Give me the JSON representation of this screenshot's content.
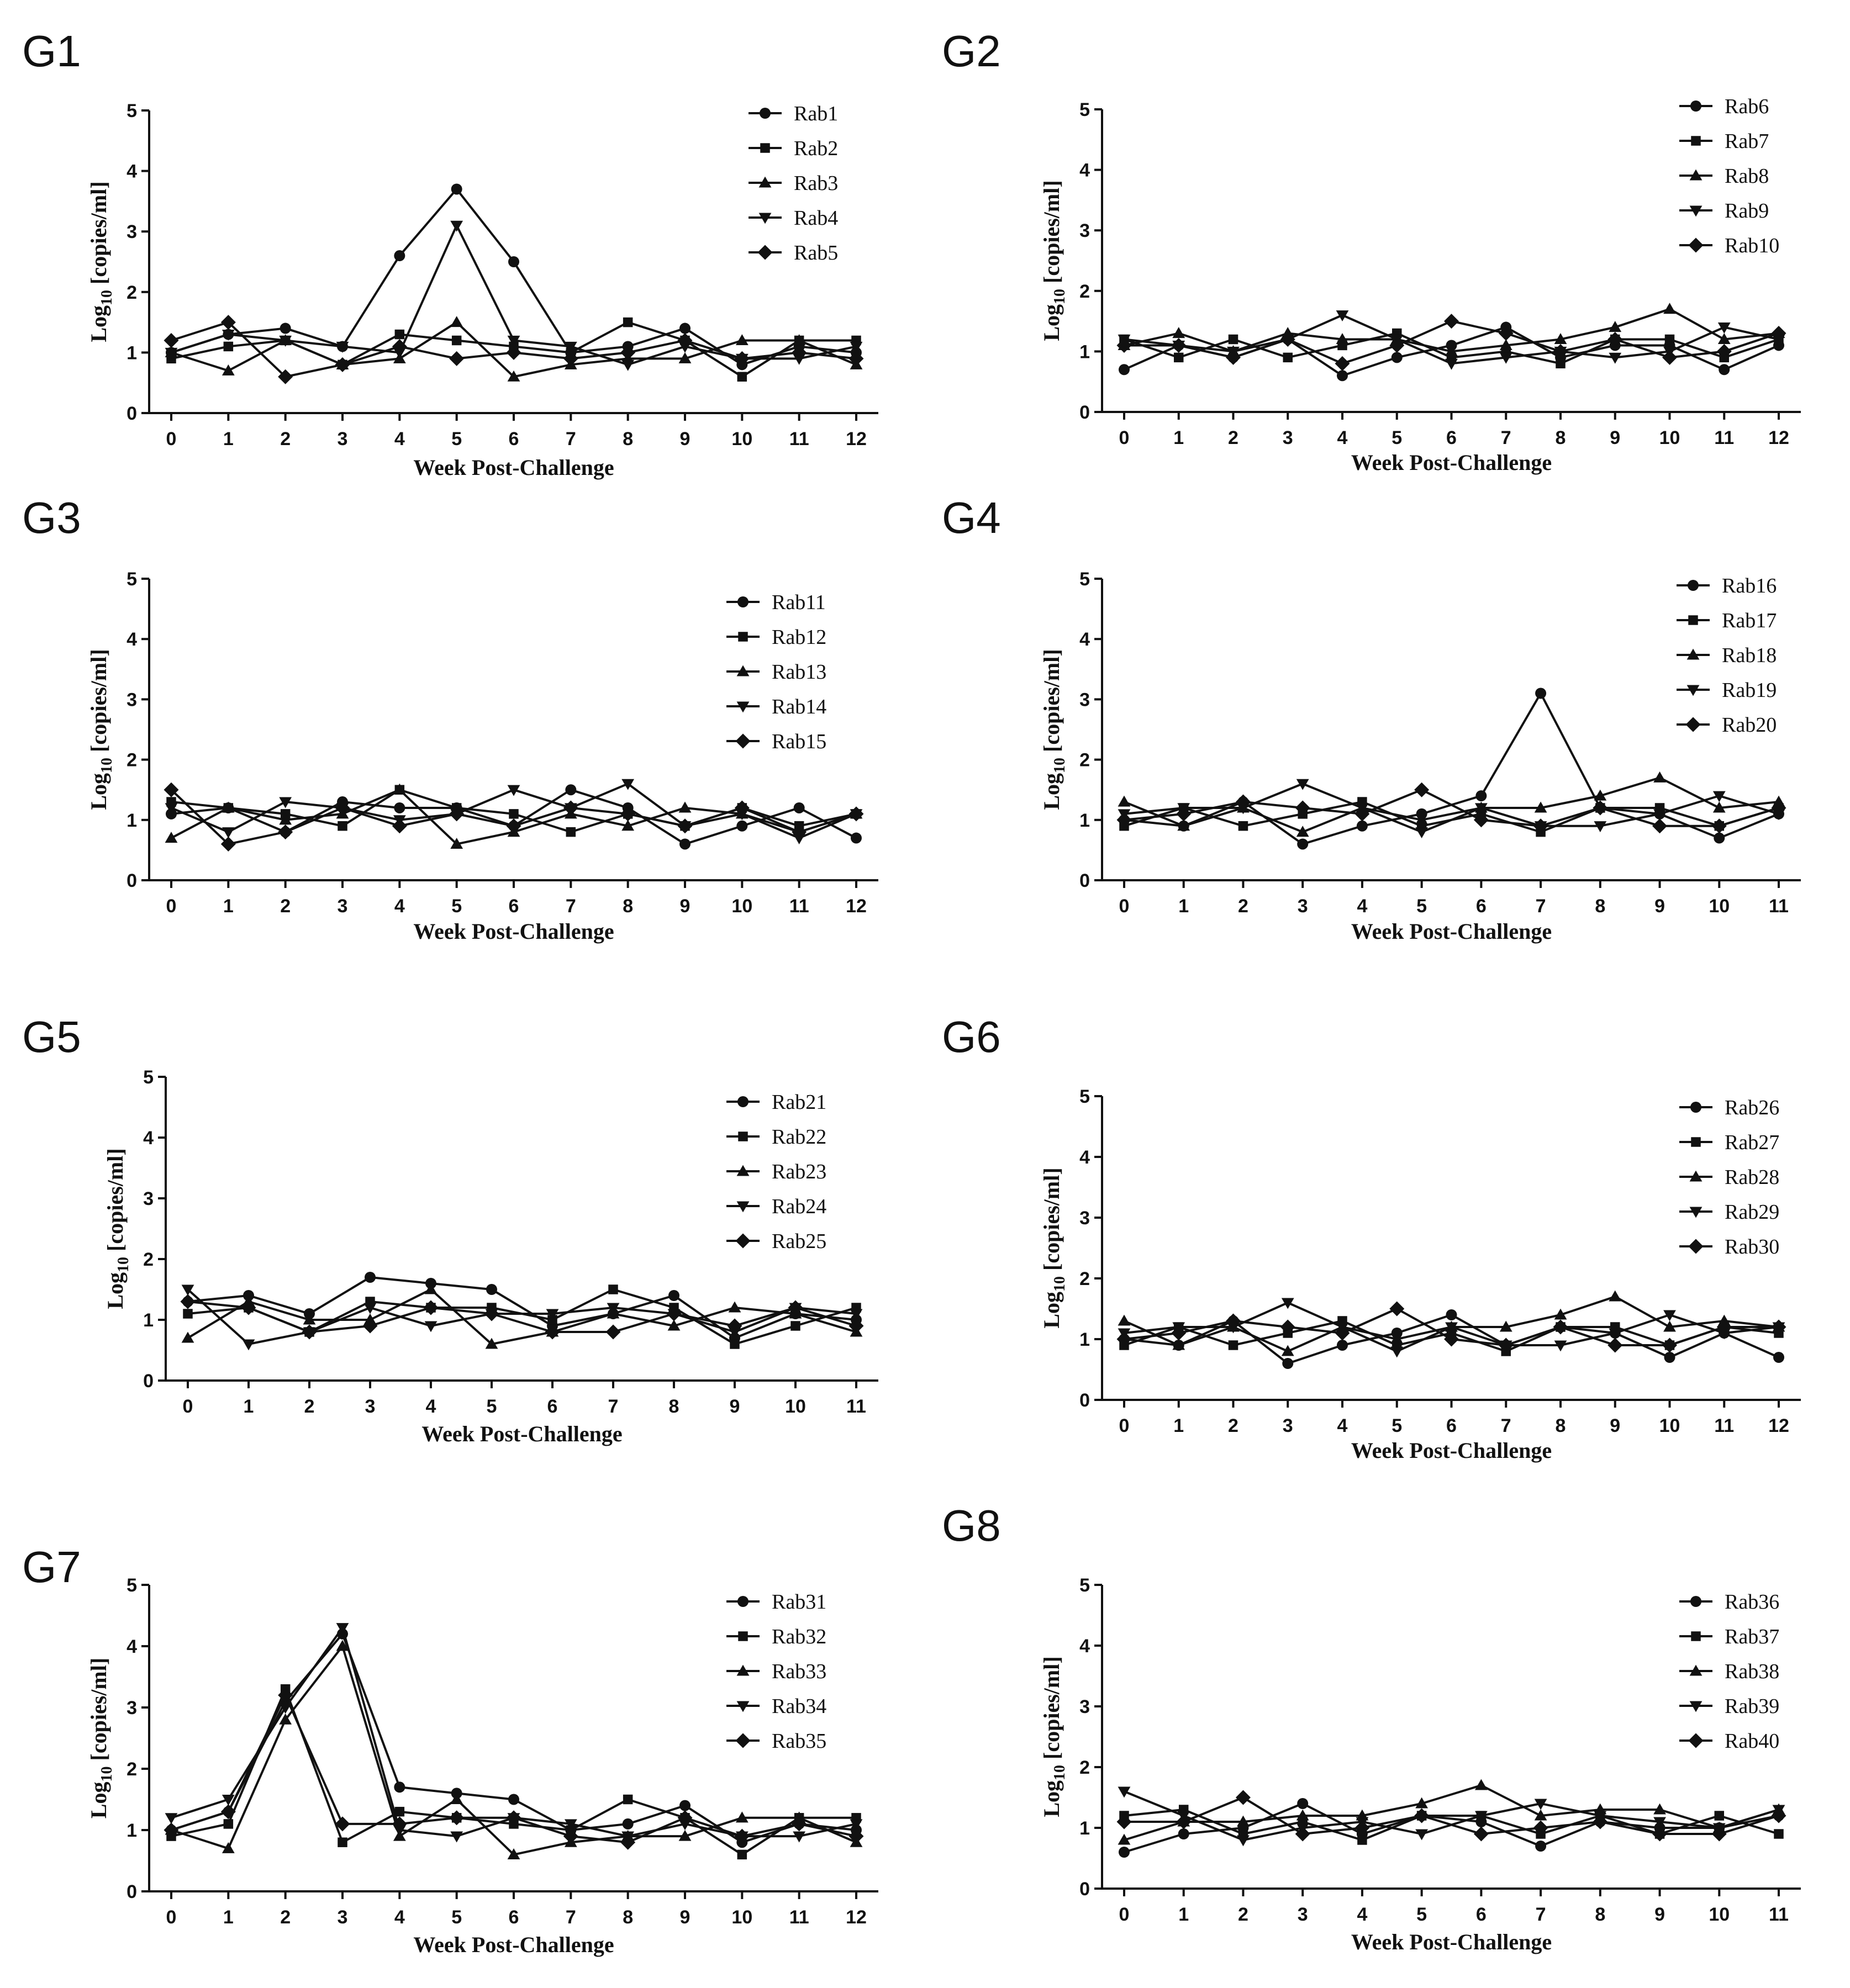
{
  "figure": {
    "xlabel": "Week Post-Challenge",
    "ylabel": "Log10 [copies/ml]",
    "ylabel_main": "Log",
    "ylabel_sub": "10",
    "ylabel_rest": " [copies/ml]",
    "marker_order": [
      "circle",
      "square",
      "triangle-up",
      "triangle-down",
      "diamond"
    ]
  },
  "chart_data": [
    {
      "panel": "G1",
      "type": "line",
      "ylim": [
        0,
        5
      ],
      "x": [
        0,
        1,
        2,
        3,
        4,
        5,
        6,
        7,
        8,
        9,
        10,
        11,
        12
      ],
      "series": [
        {
          "name": "Rab1",
          "values": [
            1.0,
            1.3,
            1.4,
            1.1,
            2.6,
            3.7,
            2.5,
            1.0,
            1.1,
            1.4,
            0.8,
            1.1,
            1.0
          ]
        },
        {
          "name": "Rab2",
          "values": [
            0.9,
            1.1,
            1.2,
            0.8,
            1.3,
            1.2,
            1.1,
            1.0,
            1.5,
            1.2,
            0.6,
            1.2,
            1.2
          ]
        },
        {
          "name": "Rab3",
          "values": [
            1.0,
            0.7,
            1.2,
            0.8,
            0.9,
            1.5,
            0.6,
            0.8,
            0.9,
            0.9,
            1.2,
            1.2,
            0.8
          ]
        },
        {
          "name": "Rab4",
          "values": [
            1.0,
            1.3,
            1.2,
            1.1,
            1.0,
            3.1,
            1.2,
            1.1,
            0.8,
            1.1,
            0.9,
            0.9,
            1.1
          ]
        },
        {
          "name": "Rab5",
          "values": [
            1.2,
            1.5,
            0.6,
            0.8,
            1.1,
            0.9,
            1.0,
            0.9,
            1.0,
            1.2,
            0.9,
            1.0,
            0.9
          ]
        }
      ]
    },
    {
      "panel": "G2",
      "type": "line",
      "ylim": [
        0,
        5
      ],
      "x": [
        0,
        1,
        2,
        3,
        4,
        5,
        6,
        7,
        8,
        9,
        10,
        11,
        12
      ],
      "series": [
        {
          "name": "Rab6",
          "values": [
            0.7,
            1.1,
            0.9,
            1.2,
            0.6,
            0.9,
            1.1,
            1.4,
            0.9,
            1.1,
            1.1,
            0.7,
            1.1
          ]
        },
        {
          "name": "Rab7",
          "values": [
            1.2,
            0.9,
            1.2,
            0.9,
            1.1,
            1.3,
            0.9,
            1.0,
            0.8,
            1.2,
            1.2,
            0.9,
            1.2
          ]
        },
        {
          "name": "Rab8",
          "values": [
            1.1,
            1.3,
            1.0,
            1.3,
            1.2,
            1.2,
            1.0,
            1.1,
            1.2,
            1.4,
            1.7,
            1.2,
            1.3
          ]
        },
        {
          "name": "Rab9",
          "values": [
            1.2,
            1.1,
            1.0,
            1.2,
            1.6,
            1.2,
            0.8,
            0.9,
            1.0,
            0.9,
            1.0,
            1.4,
            1.2
          ]
        },
        {
          "name": "Rab10",
          "values": [
            1.1,
            1.1,
            0.9,
            1.2,
            0.8,
            1.1,
            1.5,
            1.3,
            1.0,
            1.2,
            0.9,
            1.0,
            1.3
          ]
        }
      ]
    },
    {
      "panel": "G3",
      "type": "line",
      "ylim": [
        0,
        5
      ],
      "x": [
        0,
        1,
        2,
        3,
        4,
        5,
        6,
        7,
        8,
        9,
        10,
        11,
        12
      ],
      "series": [
        {
          "name": "Rab11",
          "values": [
            1.1,
            1.2,
            0.8,
            1.3,
            1.2,
            1.2,
            0.9,
            1.5,
            1.2,
            0.6,
            0.9,
            1.2,
            0.7
          ]
        },
        {
          "name": "Rab12",
          "values": [
            1.3,
            1.2,
            1.1,
            0.9,
            1.5,
            1.2,
            1.1,
            0.8,
            1.1,
            0.9,
            1.2,
            0.9,
            1.1
          ]
        },
        {
          "name": "Rab13",
          "values": [
            0.7,
            1.2,
            1.0,
            1.1,
            1.5,
            0.6,
            0.8,
            1.1,
            0.9,
            1.2,
            1.1,
            0.8,
            1.1
          ]
        },
        {
          "name": "Rab14",
          "values": [
            1.2,
            0.8,
            1.3,
            1.2,
            1.0,
            1.1,
            1.5,
            1.2,
            1.6,
            0.9,
            1.1,
            0.7,
            1.1
          ]
        },
        {
          "name": "Rab15",
          "values": [
            1.5,
            0.6,
            0.8,
            1.2,
            0.9,
            1.1,
            0.9,
            1.2,
            1.1,
            0.9,
            1.2,
            0.8,
            1.1
          ]
        }
      ]
    },
    {
      "panel": "G4",
      "type": "line",
      "ylim": [
        0,
        5
      ],
      "x": [
        0,
        1,
        2,
        3,
        4,
        5,
        6,
        7,
        8,
        9,
        10,
        11
      ],
      "series": [
        {
          "name": "Rab16",
          "values": [
            1.0,
            0.9,
            1.3,
            0.6,
            0.9,
            1.1,
            1.4,
            3.1,
            1.2,
            1.1,
            0.7,
            1.1
          ]
        },
        {
          "name": "Rab17",
          "values": [
            0.9,
            1.2,
            0.9,
            1.1,
            1.3,
            0.9,
            1.1,
            0.8,
            1.2,
            1.2,
            0.9,
            1.2
          ]
        },
        {
          "name": "Rab18",
          "values": [
            1.3,
            0.9,
            1.2,
            0.8,
            1.2,
            1.0,
            1.2,
            1.2,
            1.4,
            1.7,
            1.2,
            1.3
          ]
        },
        {
          "name": "Rab19",
          "values": [
            1.1,
            1.2,
            1.2,
            1.6,
            1.2,
            0.8,
            1.2,
            0.9,
            0.9,
            1.1,
            1.4,
            1.1
          ]
        },
        {
          "name": "Rab20",
          "values": [
            1.0,
            1.1,
            1.3,
            1.2,
            1.1,
            1.5,
            1.0,
            0.9,
            1.2,
            0.9,
            0.9,
            1.2
          ]
        }
      ]
    },
    {
      "panel": "G5",
      "type": "line",
      "ylim": [
        0,
        5
      ],
      "x": [
        0,
        1,
        2,
        3,
        4,
        5,
        6,
        7,
        8,
        9,
        10,
        11
      ],
      "series": [
        {
          "name": "Rab21",
          "values": [
            1.3,
            1.4,
            1.1,
            1.7,
            1.6,
            1.5,
            0.9,
            1.1,
            1.4,
            0.7,
            1.1,
            1.0
          ]
        },
        {
          "name": "Rab22",
          "values": [
            1.1,
            1.2,
            0.8,
            1.3,
            1.2,
            1.2,
            1.0,
            1.5,
            1.2,
            0.6,
            0.9,
            1.2
          ]
        },
        {
          "name": "Rab23",
          "values": [
            0.7,
            1.3,
            1.0,
            1.0,
            1.5,
            0.6,
            0.8,
            1.1,
            0.9,
            1.2,
            1.1,
            0.8
          ]
        },
        {
          "name": "Rab24",
          "values": [
            1.5,
            0.6,
            0.8,
            1.2,
            0.9,
            1.1,
            1.1,
            1.2,
            1.1,
            0.8,
            1.2,
            1.1
          ]
        },
        {
          "name": "Rab25",
          "values": [
            1.3,
            1.2,
            0.8,
            0.9,
            1.2,
            1.1,
            0.8,
            0.8,
            1.1,
            0.9,
            1.2,
            0.9
          ]
        }
      ]
    },
    {
      "panel": "G6",
      "type": "line",
      "ylim": [
        0,
        5
      ],
      "x": [
        0,
        1,
        2,
        3,
        4,
        5,
        6,
        7,
        8,
        9,
        10,
        11,
        12
      ],
      "series": [
        {
          "name": "Rab26",
          "values": [
            1.0,
            0.9,
            1.3,
            0.6,
            0.9,
            1.1,
            1.4,
            0.9,
            1.2,
            1.1,
            0.7,
            1.1,
            0.7
          ]
        },
        {
          "name": "Rab27",
          "values": [
            0.9,
            1.2,
            0.9,
            1.1,
            1.3,
            0.9,
            1.1,
            0.8,
            1.2,
            1.2,
            0.9,
            1.2,
            1.1
          ]
        },
        {
          "name": "Rab28",
          "values": [
            1.3,
            0.9,
            1.2,
            0.8,
            1.2,
            1.0,
            1.2,
            1.2,
            1.4,
            1.7,
            1.2,
            1.3,
            1.2
          ]
        },
        {
          "name": "Rab29",
          "values": [
            1.1,
            1.2,
            1.2,
            1.6,
            1.2,
            0.8,
            1.2,
            0.9,
            0.9,
            1.1,
            1.4,
            1.1,
            1.2
          ]
        },
        {
          "name": "Rab30",
          "values": [
            1.0,
            1.1,
            1.3,
            1.2,
            1.1,
            1.5,
            1.0,
            0.9,
            1.2,
            0.9,
            0.9,
            1.2,
            1.2
          ]
        }
      ]
    },
    {
      "panel": "G7",
      "type": "line",
      "ylim": [
        0,
        5
      ],
      "x": [
        0,
        1,
        2,
        3,
        4,
        5,
        6,
        7,
        8,
        9,
        10,
        11,
        12
      ],
      "series": [
        {
          "name": "Rab31",
          "values": [
            1.0,
            1.3,
            3.1,
            4.2,
            1.7,
            1.6,
            1.5,
            1.0,
            1.1,
            1.4,
            0.8,
            1.1,
            1.0
          ]
        },
        {
          "name": "Rab32",
          "values": [
            0.9,
            1.1,
            3.3,
            0.8,
            1.3,
            1.2,
            1.1,
            1.0,
            1.5,
            1.2,
            0.6,
            1.2,
            1.2
          ]
        },
        {
          "name": "Rab33",
          "values": [
            1.0,
            0.7,
            2.8,
            4.0,
            0.9,
            1.5,
            0.6,
            0.8,
            0.9,
            0.9,
            1.2,
            1.2,
            0.8
          ]
        },
        {
          "name": "Rab34",
          "values": [
            1.2,
            1.5,
            3.0,
            4.3,
            1.0,
            0.9,
            1.2,
            1.1,
            0.9,
            1.1,
            0.9,
            0.9,
            1.1
          ]
        },
        {
          "name": "Rab35",
          "values": [
            1.0,
            1.3,
            3.2,
            1.1,
            1.1,
            1.2,
            1.2,
            0.9,
            0.8,
            1.2,
            0.9,
            1.1,
            0.9
          ]
        }
      ]
    },
    {
      "panel": "G8",
      "type": "line",
      "ylim": [
        0,
        5
      ],
      "x": [
        0,
        1,
        2,
        3,
        4,
        5,
        6,
        7,
        8,
        9,
        10,
        11
      ],
      "series": [
        {
          "name": "Rab36",
          "values": [
            0.6,
            0.9,
            1.0,
            1.4,
            0.9,
            1.2,
            1.1,
            0.7,
            1.1,
            1.0,
            1.0,
            1.2
          ]
        },
        {
          "name": "Rab37",
          "values": [
            1.2,
            1.3,
            0.9,
            1.1,
            0.8,
            1.2,
            1.2,
            0.9,
            1.2,
            0.9,
            1.2,
            0.9
          ]
        },
        {
          "name": "Rab38",
          "values": [
            0.8,
            1.1,
            1.1,
            1.2,
            1.2,
            1.4,
            1.7,
            1.2,
            1.3,
            1.3,
            1.0,
            1.3
          ]
        },
        {
          "name": "Rab39",
          "values": [
            1.6,
            1.2,
            0.8,
            1.0,
            1.1,
            0.9,
            1.2,
            1.4,
            1.2,
            1.1,
            1.0,
            1.3
          ]
        },
        {
          "name": "Rab40",
          "values": [
            1.1,
            1.1,
            1.5,
            0.9,
            1.0,
            1.2,
            0.9,
            1.0,
            1.1,
            0.9,
            0.9,
            1.2
          ]
        }
      ]
    }
  ]
}
